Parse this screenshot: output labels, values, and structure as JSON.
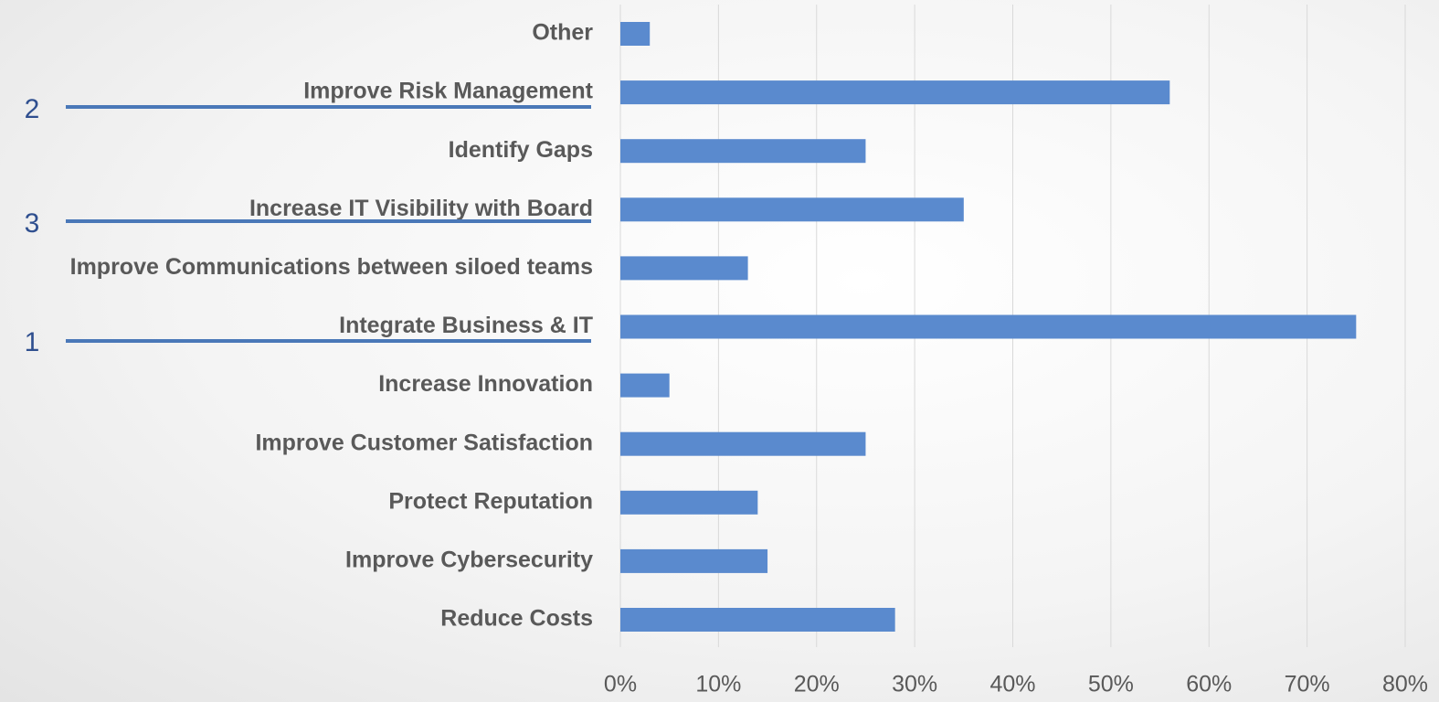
{
  "chart_data": {
    "type": "barh",
    "categories": [
      "Other",
      "Improve Risk Management",
      "Identify Gaps",
      "Increase IT Visibility with Board",
      "Improve Communications between siloed teams",
      "Integrate Business & IT",
      "Increase Innovation",
      "Improve Customer Satisfaction",
      "Protect Reputation",
      "Improve Cybersecurity",
      "Reduce Costs"
    ],
    "values": [
      3,
      56,
      25,
      35,
      13,
      75,
      5,
      25,
      14,
      15,
      28
    ],
    "color": "#5a8ace",
    "xlim": [
      0,
      80
    ],
    "xticks": [
      {
        "value": 0,
        "label": "0%"
      },
      {
        "value": 10,
        "label": "10%"
      },
      {
        "value": 20,
        "label": "20%"
      },
      {
        "value": 30,
        "label": "30%"
      },
      {
        "value": 40,
        "label": "40%"
      },
      {
        "value": 50,
        "label": "50%"
      },
      {
        "value": 60,
        "label": "60%"
      },
      {
        "value": 70,
        "label": "70%"
      },
      {
        "value": 80,
        "label": "80%"
      }
    ],
    "grid": true,
    "annotations": [
      "2",
      "3",
      "1"
    ]
  }
}
